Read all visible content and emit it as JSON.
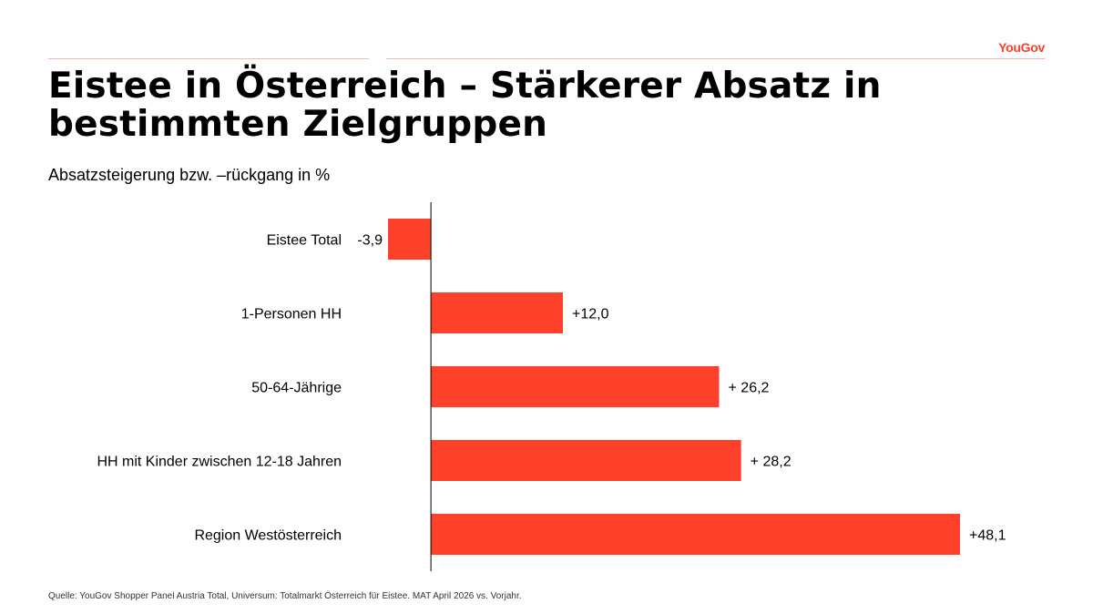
{
  "brand": {
    "logo_text": "YouGov",
    "accent": "#ff412c"
  },
  "title": "Eistee in Österreich – Stärkerer Absatz in bestimmten Zielgruppen",
  "subtitle": "Absatzsteigerung bzw. –rückgang in %",
  "chart_data": {
    "type": "bar",
    "orientation": "horizontal",
    "categories": [
      "Eistee Total",
      "1-Personen HH",
      "50-64-Jährige",
      "HH mit Kinder zwischen 12-18 Jahren",
      "Region Westösterreich"
    ],
    "values": [
      -3.9,
      12.0,
      26.2,
      28.2,
      48.1
    ],
    "data_labels": [
      "-3,9",
      "+12,0",
      "+ 26,2",
      "+ 28,2",
      "+48,1"
    ],
    "bar_color": "#ff412c",
    "axis_color": "#000000",
    "title": "",
    "xlabel": "",
    "ylabel": "",
    "xlim": [
      -3.9,
      48.1
    ],
    "grid": false,
    "legend": "none"
  },
  "source": "Quelle: YouGov Shopper Panel Austria Total, Universum: Totalmarkt Österreich für Eistee. MAT April 2026 vs. Vorjahr."
}
